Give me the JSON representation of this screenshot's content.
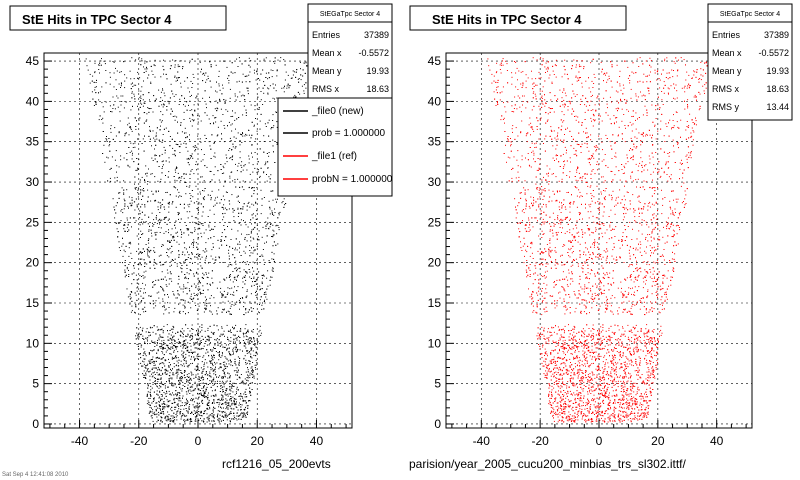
{
  "colors": {
    "black_series": "#000000",
    "red_series": "#ff0000",
    "frame": "#000000"
  },
  "footer": {
    "left": "rcf1216_05_200evts",
    "right": "parision/year_2005_cucu200_minbias_trs_sl302.ittf/",
    "corner": "Sat Sep 4 12:41:08 2010"
  },
  "legend": {
    "entries": [
      {
        "label": "_file0 (new)",
        "color": "#000000"
      },
      {
        "label": "prob = 1.000000",
        "color": "#000000"
      },
      {
        "label": "_file1 (ref)",
        "color": "#ff0000"
      },
      {
        "label": "probN = 1.000000",
        "color": "#ff0000"
      }
    ]
  },
  "chart_data": [
    {
      "type": "scatter",
      "title": "StE Hits in TPC Sector 4",
      "color": "#000000",
      "xlim": [
        -52,
        52
      ],
      "ylim": [
        -0.5,
        46
      ],
      "xticks": [
        -40,
        -20,
        0,
        20,
        40
      ],
      "yticks": [
        0,
        5,
        10,
        15,
        20,
        25,
        30,
        35,
        40,
        45
      ],
      "grid": true,
      "stats": {
        "name": "StEGaTpc Sector 4",
        "rows": [
          {
            "label": "Entries",
            "value": "37389"
          },
          {
            "label": "Mean x",
            "value": "-0.5572"
          },
          {
            "label": "Mean y",
            "value": "19.93"
          },
          {
            "label": "RMS x",
            "value": "18.63"
          }
        ]
      }
    },
    {
      "type": "scatter",
      "title": "StE Hits in TPC Sector 4",
      "color": "#ff0000",
      "xlim": [
        -52,
        52
      ],
      "ylim": [
        -0.5,
        46
      ],
      "xticks": [
        -40,
        -20,
        0,
        20,
        40
      ],
      "yticks": [
        0,
        5,
        10,
        15,
        20,
        25,
        30,
        35,
        40,
        45
      ],
      "grid": true,
      "stats": {
        "name": "StEGaTpc Sector 4",
        "rows": [
          {
            "label": "Entries",
            "value": "37389"
          },
          {
            "label": "Mean x",
            "value": "-0.5572"
          },
          {
            "label": "Mean y",
            "value": "19.93"
          },
          {
            "label": "RMS x",
            "value": "18.63"
          },
          {
            "label": "RMS y",
            "value": "13.44"
          }
        ]
      }
    }
  ]
}
